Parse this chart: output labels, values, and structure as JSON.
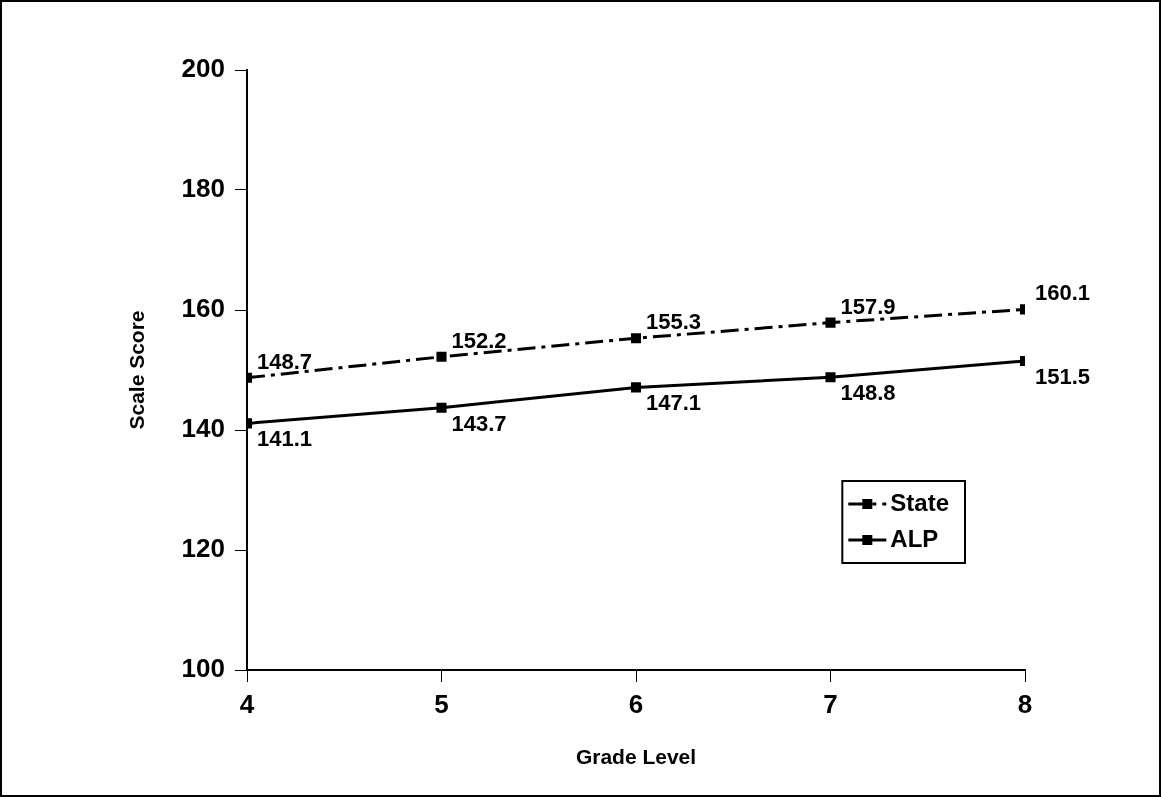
{
  "chart_data": {
    "type": "line",
    "xlabel": "Grade Level",
    "ylabel": "Scale Score",
    "x": [
      4,
      5,
      6,
      7,
      8
    ],
    "series": [
      {
        "name": "State",
        "color": "#000000",
        "values": [
          148.7,
          152.2,
          155.3,
          157.9,
          160.1
        ],
        "line_style": "dashed",
        "marker": "square"
      },
      {
        "name": "ALP",
        "color": "#000000",
        "values": [
          141.1,
          143.7,
          147.1,
          148.8,
          151.5
        ],
        "line_style": "solid",
        "marker": "square"
      }
    ],
    "xlim": [
      4,
      8
    ],
    "xticks": [
      4,
      5,
      6,
      7,
      8
    ],
    "ylim": [
      100,
      200
    ],
    "yticks": [
      100,
      120,
      140,
      160,
      180,
      200
    ],
    "grid": false,
    "legend": "bottom right",
    "data_labels": true
  }
}
